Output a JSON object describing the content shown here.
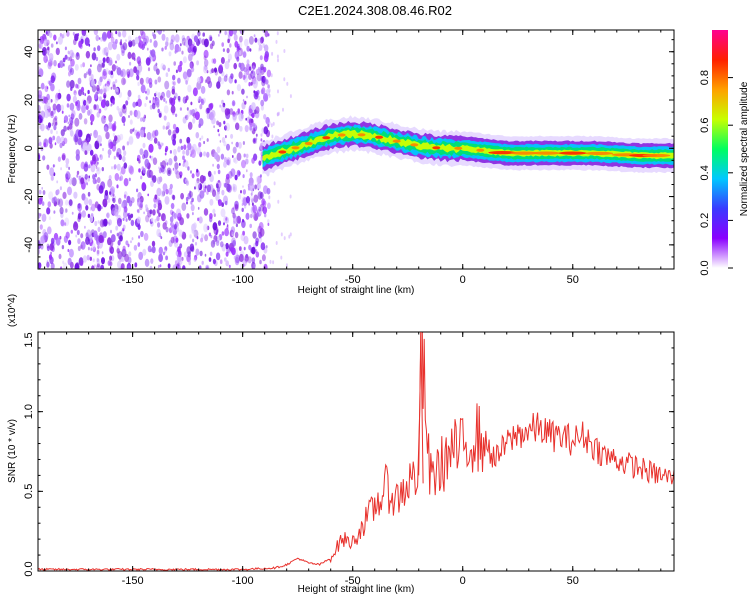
{
  "title": "C2E1.2024.308.08.46.R02",
  "chart_data": [
    {
      "type": "heatmap",
      "xlabel": "Height of straight line (km)",
      "ylabel": "Frequency (Hz)",
      "xlim": [
        -193,
        96
      ],
      "ylim": [
        -50,
        49
      ],
      "x_ticks": [
        -150,
        -100,
        -50,
        0,
        50
      ],
      "y_ticks": [
        -40,
        -20,
        0,
        20,
        40
      ],
      "noise_region_x": [
        -193,
        -88
      ],
      "signal_ridge": {
        "x": [
          -91,
          -80,
          -70,
          -60,
          -50,
          -40,
          -30,
          -20,
          -10,
          0,
          10,
          20,
          40,
          60,
          80,
          96
        ],
        "frequency": [
          -4,
          -1,
          2,
          5,
          6,
          5,
          3,
          1,
          0,
          0,
          -1,
          -2,
          -2,
          -2,
          -3,
          -3
        ]
      },
      "colorbar": {
        "label": "Normalized spectral amplitude",
        "range": [
          0,
          1
        ],
        "ticks": [
          "0.0",
          "0.2",
          "0.4",
          "0.6",
          "0.8"
        ],
        "stops": [
          "#ffffff",
          "#8a00ff",
          "#3a3aff",
          "#00c8ff",
          "#00ff60",
          "#c8ff00",
          "#ffa000",
          "#ff2000",
          "#ff0090"
        ]
      }
    },
    {
      "type": "line",
      "xlabel": "Height of straight line (km)",
      "ylabel": "SNR (10 * v/v)",
      "y_multiplier": "(x10^4)",
      "xlim": [
        -193,
        96
      ],
      "ylim": [
        0,
        1.5
      ],
      "x_ticks": [
        -150,
        -100,
        -50,
        0,
        50
      ],
      "y_ticks": [
        "0.0",
        "0.5",
        "1.0",
        "1.5"
      ],
      "line_color": "#e8322d",
      "series": [
        {
          "x": [
            -193,
            -150,
            -100,
            -85,
            -80,
            -75,
            -70,
            -65,
            -60,
            -55,
            -50,
            -45,
            -40,
            -35,
            -30,
            -25,
            -20,
            -19,
            -15,
            -10,
            -5,
            0,
            5,
            10,
            15,
            20,
            25,
            30,
            35,
            40,
            45,
            50,
            55,
            60,
            65,
            70,
            75,
            80,
            85,
            90,
            96
          ],
          "values": [
            0.01,
            0.01,
            0.01,
            0.02,
            0.04,
            0.08,
            0.05,
            0.04,
            0.08,
            0.2,
            0.18,
            0.3,
            0.4,
            0.52,
            0.45,
            0.55,
            0.62,
            1.5,
            0.58,
            0.66,
            0.75,
            0.76,
            0.86,
            0.8,
            0.7,
            0.8,
            0.86,
            0.88,
            0.9,
            0.85,
            0.84,
            0.82,
            0.85,
            0.78,
            0.72,
            0.7,
            0.67,
            0.65,
            0.62,
            0.6,
            0.58
          ]
        }
      ]
    }
  ]
}
